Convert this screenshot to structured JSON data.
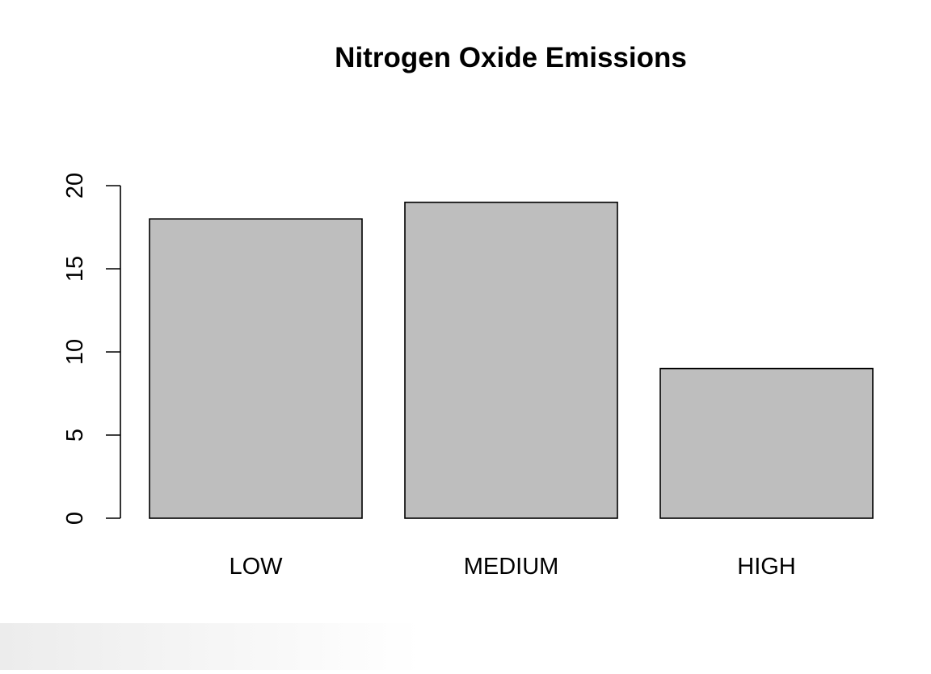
{
  "chart_data": {
    "type": "bar",
    "title": "Nitrogen Oxide Emissions",
    "xlabel": "",
    "ylabel": "",
    "categories": [
      "LOW",
      "MEDIUM",
      "HIGH"
    ],
    "values": [
      18,
      19,
      9
    ],
    "ylim": [
      0,
      20
    ],
    "yticks": [
      0,
      5,
      10,
      15,
      20
    ],
    "ytick_labels": [
      "0",
      "5",
      "10",
      "15",
      "20"
    ],
    "grid": false,
    "legend": "none",
    "colors": {
      "bar_fill": "#bebebe",
      "bar_stroke": "#000000",
      "axis": "#000000",
      "background": "#ffffff"
    }
  }
}
